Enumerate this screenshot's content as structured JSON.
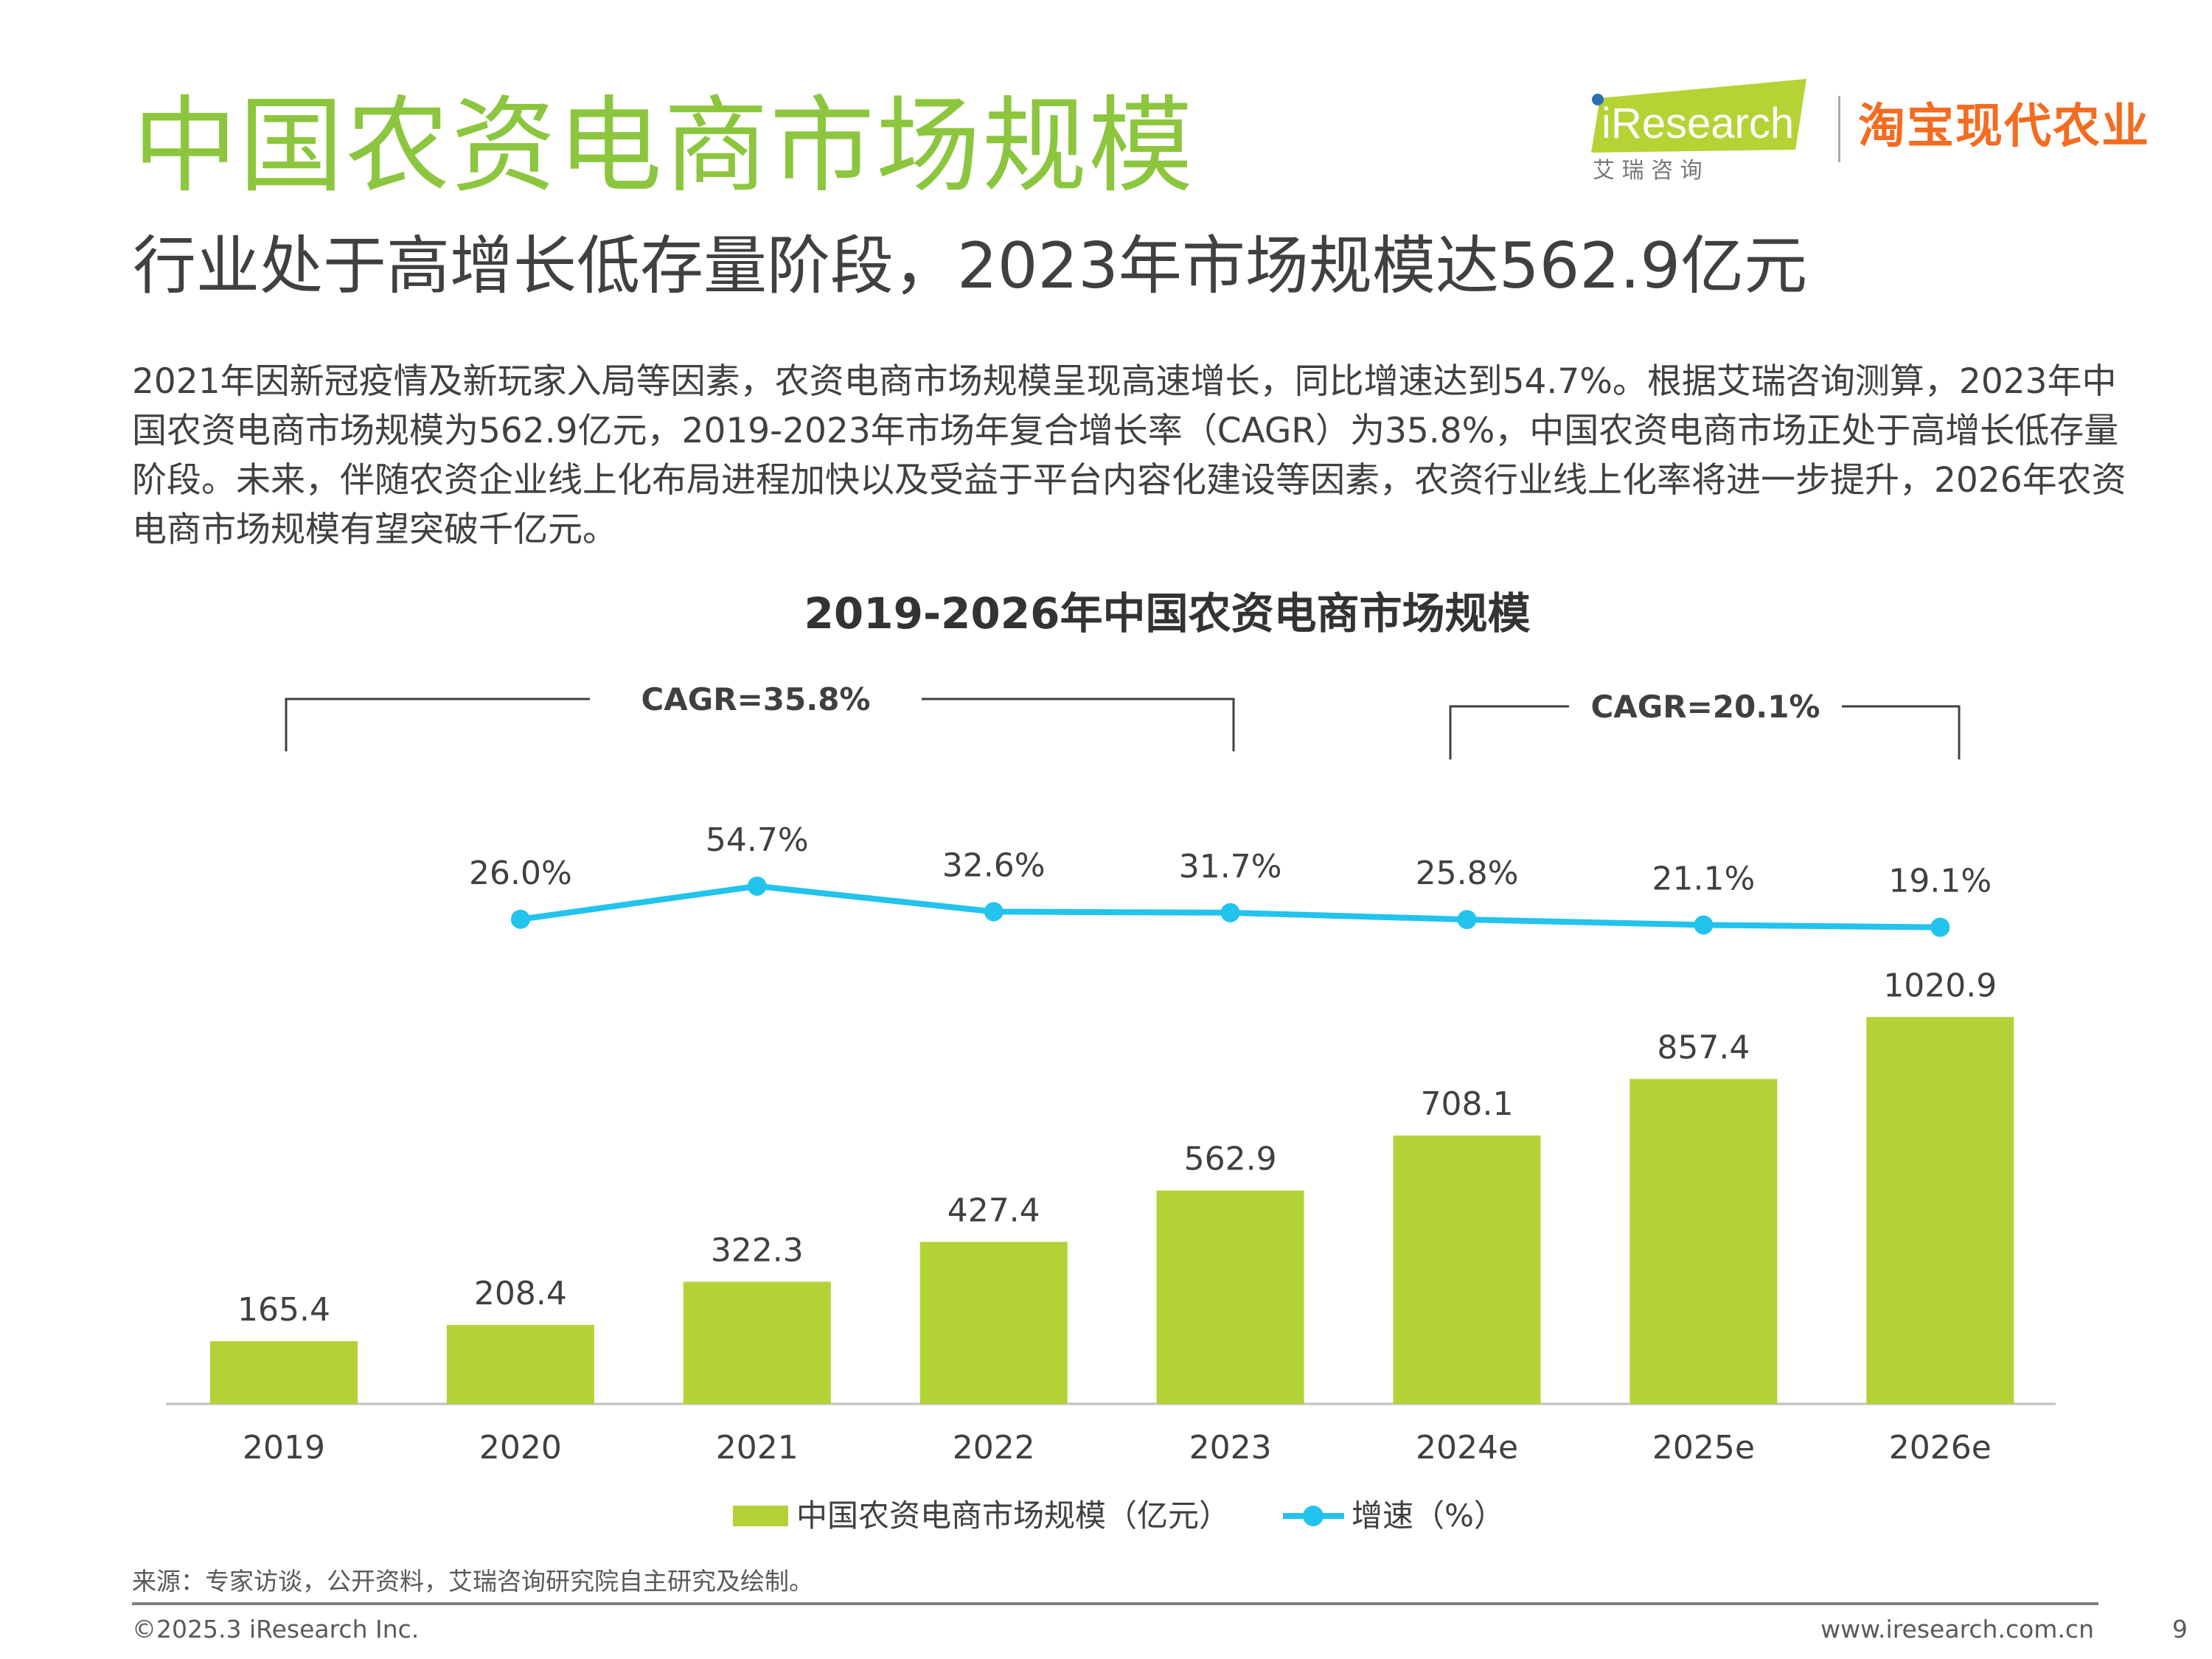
{
  "header": {
    "title": "中国农资电商市场规模",
    "subtitle": "行业处于高增长低存量阶段，2023年市场规模达562.9亿元",
    "paragraph": "2021年因新冠疫情及新玩家入局等因素，农资电商市场规模呈现高速增长，同比增速达到54.7%。根据艾瑞咨询测算，2023年中国农资电商市场规模为562.9亿元，2019-2023年市场年复合增长率（CAGR）为35.8%，中国农资电商市场正处于高增长低存量阶段。未来，伴随农资企业线上化布局进程加快以及受益于平台内容化建设等因素，农资行业线上化率将进一步提升，2026年农资电商市场规模有望突破千亿元。"
  },
  "logos": {
    "iresearch": "iResearch",
    "iresearch_cn": "艾 瑞 咨 询",
    "taobao": "淘宝现代农业"
  },
  "colors": {
    "title": "#8cc63e",
    "bar": "#b3d235",
    "line": "#22c3ec",
    "logo_green": "#b5d334",
    "logo_orange": "#f36c21"
  },
  "chart_data": {
    "type": "bar+line",
    "title": "2019-2026年中国农资电商市场规模",
    "categories": [
      "2019",
      "2020",
      "2021",
      "2022",
      "2023",
      "2024e",
      "2025e",
      "2026e"
    ],
    "series": [
      {
        "name": "中国农资电商市场规模（亿元）",
        "type": "bar",
        "values": [
          165.4,
          208.4,
          322.3,
          427.4,
          562.9,
          708.1,
          857.4,
          1020.9
        ]
      },
      {
        "name": "增速（%）",
        "type": "line",
        "values": [
          null,
          26.0,
          54.7,
          32.6,
          31.7,
          25.8,
          21.1,
          19.1
        ]
      }
    ],
    "annotations": [
      {
        "text": "CAGR=35.8%",
        "from": "2019",
        "to": "2023"
      },
      {
        "text": "CAGR=20.1%",
        "from": "2024e",
        "to": "2026e"
      }
    ],
    "legend": "bottom",
    "grid": false
  },
  "footer": {
    "source": "来源：专家访谈，公开资料，艾瑞咨询研究院自主研究及绘制。",
    "copyright": "©2025.3 iResearch Inc.",
    "website": "www.iresearch.com.cn",
    "page": "9"
  }
}
